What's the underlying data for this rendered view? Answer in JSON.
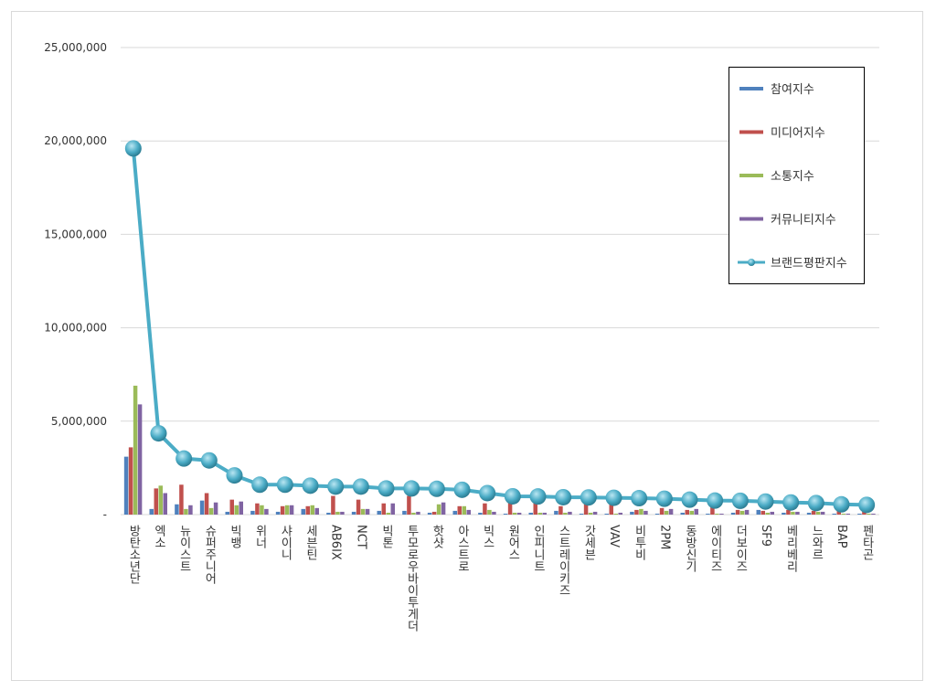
{
  "chart_data": {
    "type": "bar",
    "categories": [
      "방탄소년단",
      "엑소",
      "뉴이스트",
      "슈퍼주니어",
      "빅뱅",
      "위너",
      "샤이니",
      "세븐틴",
      "AB6IX",
      "NCT",
      "빅톤",
      "투모로우바이투게더",
      "핫샷",
      "아스트로",
      "빅스",
      "원어스",
      "인피니트",
      "스트레이키즈",
      "갓세븐",
      "VAV",
      "비투비",
      "2PM",
      "동방신기",
      "에이티즈",
      "더보이즈",
      "SF9",
      "베리베리",
      "느와르",
      "BAP",
      "펜타곤"
    ],
    "series": [
      {
        "name": "참여지수",
        "color": "#4f81bd",
        "values": [
          3100000,
          300000,
          550000,
          750000,
          150000,
          200000,
          150000,
          300000,
          100000,
          150000,
          200000,
          200000,
          100000,
          200000,
          100000,
          50000,
          100000,
          200000,
          50000,
          50000,
          150000,
          50000,
          100000,
          50000,
          100000,
          250000,
          100000,
          100000,
          50000,
          50000
        ]
      },
      {
        "name": "미디어지수",
        "color": "#c0504d",
        "values": [
          3600000,
          1400000,
          1600000,
          1150000,
          800000,
          600000,
          450000,
          450000,
          1000000,
          800000,
          600000,
          1000000,
          150000,
          450000,
          600000,
          700000,
          700000,
          450000,
          600000,
          600000,
          250000,
          350000,
          250000,
          600000,
          250000,
          200000,
          250000,
          200000,
          350000,
          350000
        ]
      },
      {
        "name": "소통지수",
        "color": "#9bbb59",
        "values": [
          6900000,
          1550000,
          300000,
          350000,
          500000,
          500000,
          500000,
          500000,
          150000,
          300000,
          100000,
          100000,
          550000,
          450000,
          250000,
          100000,
          100000,
          100000,
          100000,
          50000,
          300000,
          200000,
          200000,
          50000,
          200000,
          100000,
          150000,
          150000,
          50000,
          50000
        ]
      },
      {
        "name": "커뮤니티지수",
        "color": "#8064a2",
        "values": [
          5900000,
          1150000,
          500000,
          650000,
          700000,
          300000,
          500000,
          350000,
          150000,
          300000,
          600000,
          150000,
          650000,
          250000,
          150000,
          100000,
          100000,
          150000,
          150000,
          100000,
          200000,
          300000,
          300000,
          50000,
          250000,
          150000,
          150000,
          150000,
          50000,
          50000
        ]
      },
      {
        "name": "브랜드평판지수",
        "color": "#4bacc6",
        "type": "line",
        "values": [
          19600000,
          4350000,
          3000000,
          2900000,
          2100000,
          1600000,
          1600000,
          1550000,
          1500000,
          1500000,
          1400000,
          1400000,
          1380000,
          1330000,
          1150000,
          980000,
          970000,
          930000,
          920000,
          900000,
          880000,
          850000,
          800000,
          750000,
          740000,
          700000,
          650000,
          620000,
          550000,
          520000
        ]
      }
    ],
    "ylim": [
      0,
      25000000
    ],
    "yticks": [
      {
        "value": 0,
        "label": "-"
      },
      {
        "value": 5000000,
        "label": "5,000,000"
      },
      {
        "value": 10000000,
        "label": "10,000,000"
      },
      {
        "value": 15000000,
        "label": "15,000,000"
      },
      {
        "value": 20000000,
        "label": "20,000,000"
      },
      {
        "value": 25000000,
        "label": "25,000,000"
      }
    ],
    "grid": true,
    "legend": "right"
  }
}
